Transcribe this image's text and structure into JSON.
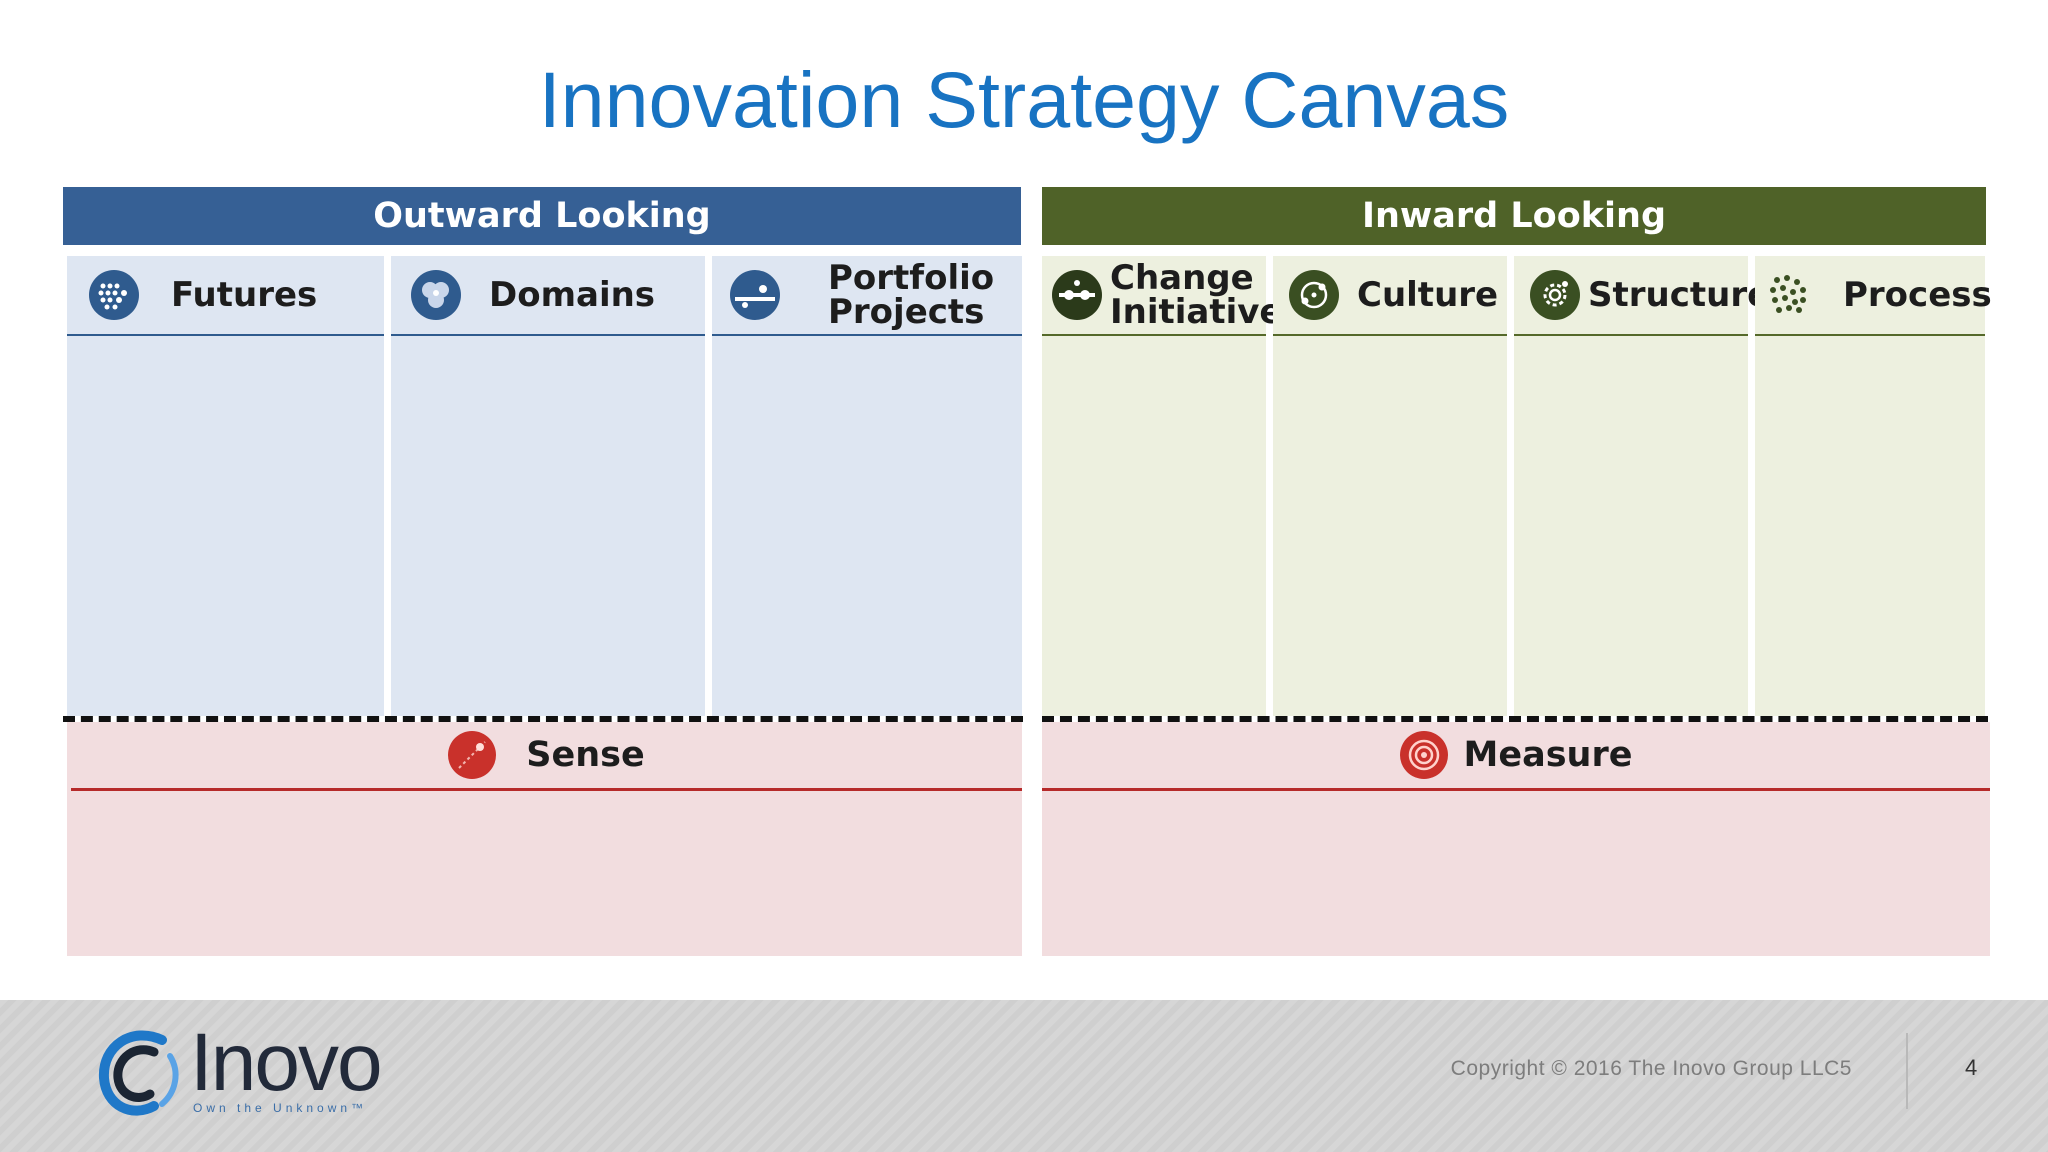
{
  "slide": {
    "title": "Innovation Strategy Canvas"
  },
  "outward": {
    "header": "Outward Looking",
    "color": "#366095",
    "columns": [
      {
        "label": "Futures",
        "icon": "futures-icon"
      },
      {
        "label": "Domains",
        "icon": "domains-icon"
      },
      {
        "label_line1": "Portfolio",
        "label_line2": "Projects",
        "icon": "portfolio-projects-icon"
      }
    ],
    "bottom": {
      "label": "Sense",
      "icon": "sense-icon"
    }
  },
  "inward": {
    "header": "Inward Looking",
    "color": "#4f6228",
    "columns": [
      {
        "label_line1": "Change",
        "label_line2": "Initiatives",
        "icon": "change-initiatives-icon"
      },
      {
        "label": "Culture",
        "icon": "culture-icon"
      },
      {
        "label": "Structure",
        "icon": "structure-icon"
      },
      {
        "label": "Process",
        "icon": "process-icon"
      }
    ],
    "bottom": {
      "label": "Measure",
      "icon": "measure-icon"
    }
  },
  "footer": {
    "logo_name": "Inovo",
    "logo_tagline": "Own the Unknown™",
    "copyright": "Copyright © 2016 The Inovo Group LLC5",
    "page_number": "4"
  }
}
